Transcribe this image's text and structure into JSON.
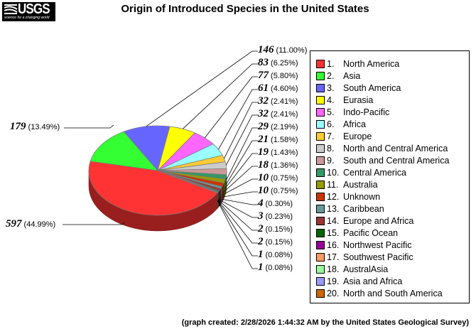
{
  "header": {
    "logo_text": "USGS",
    "logo_tagline": "science for a changing world",
    "title": "Origin of Introduced Species in the United States"
  },
  "footer": {
    "text": "(graph created: 2/28/2026 1:44:32 AM by the United States Geological Survey)"
  },
  "legend": {
    "items": [
      {
        "num": "1.",
        "label": "North America",
        "color": "#ff3333"
      },
      {
        "num": "2.",
        "label": "Asia",
        "color": "#33ff33"
      },
      {
        "num": "3.",
        "label": "South America",
        "color": "#6666ff"
      },
      {
        "num": "4.",
        "label": "Eurasia",
        "color": "#ffff00"
      },
      {
        "num": "5.",
        "label": "Indo-Pacific",
        "color": "#ff66ff"
      },
      {
        "num": "6.",
        "label": "Africa",
        "color": "#99ffff"
      },
      {
        "num": "7.",
        "label": "Europe",
        "color": "#ffcc33"
      },
      {
        "num": "8.",
        "label": "North and Central America",
        "color": "#cccccc"
      },
      {
        "num": "9.",
        "label": "South and Central America",
        "color": "#cc9999"
      },
      {
        "num": "10.",
        "label": "Central America",
        "color": "#339966"
      },
      {
        "num": "11.",
        "label": "Australia",
        "color": "#999900"
      },
      {
        "num": "12.",
        "label": "Unknown",
        "color": "#cc3300"
      },
      {
        "num": "13.",
        "label": "Caribbean",
        "color": "#669999"
      },
      {
        "num": "14.",
        "label": "Europe and Africa",
        "color": "#993333"
      },
      {
        "num": "15.",
        "label": "Pacific Ocean",
        "color": "#006600"
      },
      {
        "num": "16.",
        "label": "Northwest Pacific",
        "color": "#990099"
      },
      {
        "num": "17.",
        "label": "Southwest Pacific",
        "color": "#ff9966"
      },
      {
        "num": "18.",
        "label": "AustralAsia",
        "color": "#99ff99"
      },
      {
        "num": "19.",
        "label": "Asia and Africa",
        "color": "#9999ff"
      },
      {
        "num": "20.",
        "label": "North and South America",
        "color": "#cc6600"
      }
    ]
  },
  "labels": [
    {
      "value": "597",
      "pct": "(44.99%)"
    },
    {
      "value": "179",
      "pct": "(13.49%)"
    },
    {
      "value": "146",
      "pct": "(11.00%)"
    },
    {
      "value": "83",
      "pct": "(6.25%)"
    },
    {
      "value": "77",
      "pct": "(5.80%)"
    },
    {
      "value": "61",
      "pct": "(4.60%)"
    },
    {
      "value": "32",
      "pct": "(2.41%)"
    },
    {
      "value": "32",
      "pct": "(2.41%)"
    },
    {
      "value": "29",
      "pct": "(2.19%)"
    },
    {
      "value": "21",
      "pct": "(1.58%)"
    },
    {
      "value": "19",
      "pct": "(1.43%)"
    },
    {
      "value": "18",
      "pct": "(1.36%)"
    },
    {
      "value": "10",
      "pct": "(0.75%)"
    },
    {
      "value": "10",
      "pct": "(0.75%)"
    },
    {
      "value": "4",
      "pct": "(0.30%)"
    },
    {
      "value": "3",
      "pct": "(0.23%)"
    },
    {
      "value": "2",
      "pct": "(0.15%)"
    },
    {
      "value": "2",
      "pct": "(0.15%)"
    },
    {
      "value": "1",
      "pct": "(0.08%)"
    },
    {
      "value": "1",
      "pct": "(0.08%)"
    }
  ],
  "chart_data": {
    "type": "pie",
    "title": "Origin of Introduced Species in the United States",
    "categories": [
      "North America",
      "Asia",
      "South America",
      "Eurasia",
      "Indo-Pacific",
      "Africa",
      "Europe",
      "North and Central America",
      "South and Central America",
      "Central America",
      "Australia",
      "Unknown",
      "Caribbean",
      "Europe and Africa",
      "Pacific Ocean",
      "Northwest Pacific",
      "Southwest Pacific",
      "AustralAsia",
      "Asia and Africa",
      "North and South America"
    ],
    "values": [
      597,
      179,
      146,
      83,
      77,
      61,
      32,
      32,
      29,
      21,
      19,
      18,
      10,
      10,
      4,
      3,
      2,
      2,
      1,
      1
    ],
    "percentages": [
      44.99,
      13.49,
      11.0,
      6.25,
      5.8,
      4.6,
      2.41,
      2.41,
      2.19,
      1.58,
      1.43,
      1.36,
      0.75,
      0.75,
      0.3,
      0.23,
      0.15,
      0.15,
      0.08,
      0.08
    ],
    "legend_position": "right",
    "style": "3d-pie"
  }
}
